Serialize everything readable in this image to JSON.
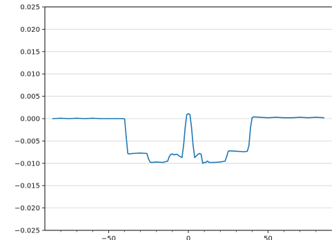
{
  "chart_data": {
    "type": "line",
    "title": "",
    "xlabel": "",
    "ylabel": "",
    "xlim": [
      -90,
      90
    ],
    "ylim": [
      -0.025,
      0.025
    ],
    "grid": "horizontal",
    "x_ticks": [
      -50,
      0,
      50
    ],
    "x_tick_labels": [
      "−50",
      "0",
      "50"
    ],
    "y_ticks": [
      -0.025,
      -0.02,
      -0.015,
      -0.01,
      -0.005,
      0.0,
      0.005,
      0.01,
      0.015,
      0.02,
      0.025
    ],
    "y_tick_labels": [
      "−0.025",
      "−0.020",
      "−0.015",
      "−0.010",
      "−0.005",
      "0.000",
      "0.005",
      "0.010",
      "0.015",
      "0.020",
      "0.025"
    ],
    "colors": {
      "line": "#1f77b4",
      "grid": "#d0d0d0",
      "axis": "#000000"
    },
    "series": [
      {
        "x": [
          -85,
          -80,
          -75,
          -70,
          -65,
          -60,
          -55,
          -50,
          -45,
          -41,
          -40,
          -39,
          -38,
          -37,
          -35,
          -30,
          -26,
          -25,
          -24,
          -23,
          -20,
          -16,
          -13,
          -12,
          -11,
          -10,
          -9,
          -8,
          -7,
          -6,
          -4,
          -3,
          -2,
          -1,
          0,
          1,
          2,
          3,
          4,
          6,
          7,
          8,
          9,
          10,
          11,
          12,
          13,
          16,
          20,
          23,
          24,
          25,
          26,
          30,
          35,
          37,
          38,
          39,
          40,
          41,
          45,
          50,
          55,
          60,
          65,
          70,
          75,
          80,
          85
        ],
        "y": [
          0.0,
          0.0001,
          0.0,
          0.0001,
          0.0,
          0.0001,
          0.0,
          0.0,
          0.0,
          0.0,
          -0.0001,
          -0.004,
          -0.0078,
          -0.0079,
          -0.0078,
          -0.0077,
          -0.0078,
          -0.009,
          -0.0097,
          -0.0098,
          -0.0097,
          -0.0098,
          -0.0095,
          -0.0085,
          -0.008,
          -0.0079,
          -0.0081,
          -0.008,
          -0.008,
          -0.0083,
          -0.0087,
          -0.006,
          -0.002,
          0.0009,
          0.0011,
          0.0009,
          -0.002,
          -0.006,
          -0.0087,
          -0.008,
          -0.0078,
          -0.008,
          -0.01,
          -0.0098,
          -0.0098,
          -0.0095,
          -0.0098,
          -0.0098,
          -0.0097,
          -0.0095,
          -0.0085,
          -0.0073,
          -0.0072,
          -0.0073,
          -0.0074,
          -0.0073,
          -0.006,
          -0.002,
          0.0002,
          0.0004,
          0.0003,
          0.0002,
          0.0003,
          0.0002,
          0.0002,
          0.0003,
          0.0002,
          0.0003,
          0.0002
        ]
      }
    ]
  }
}
